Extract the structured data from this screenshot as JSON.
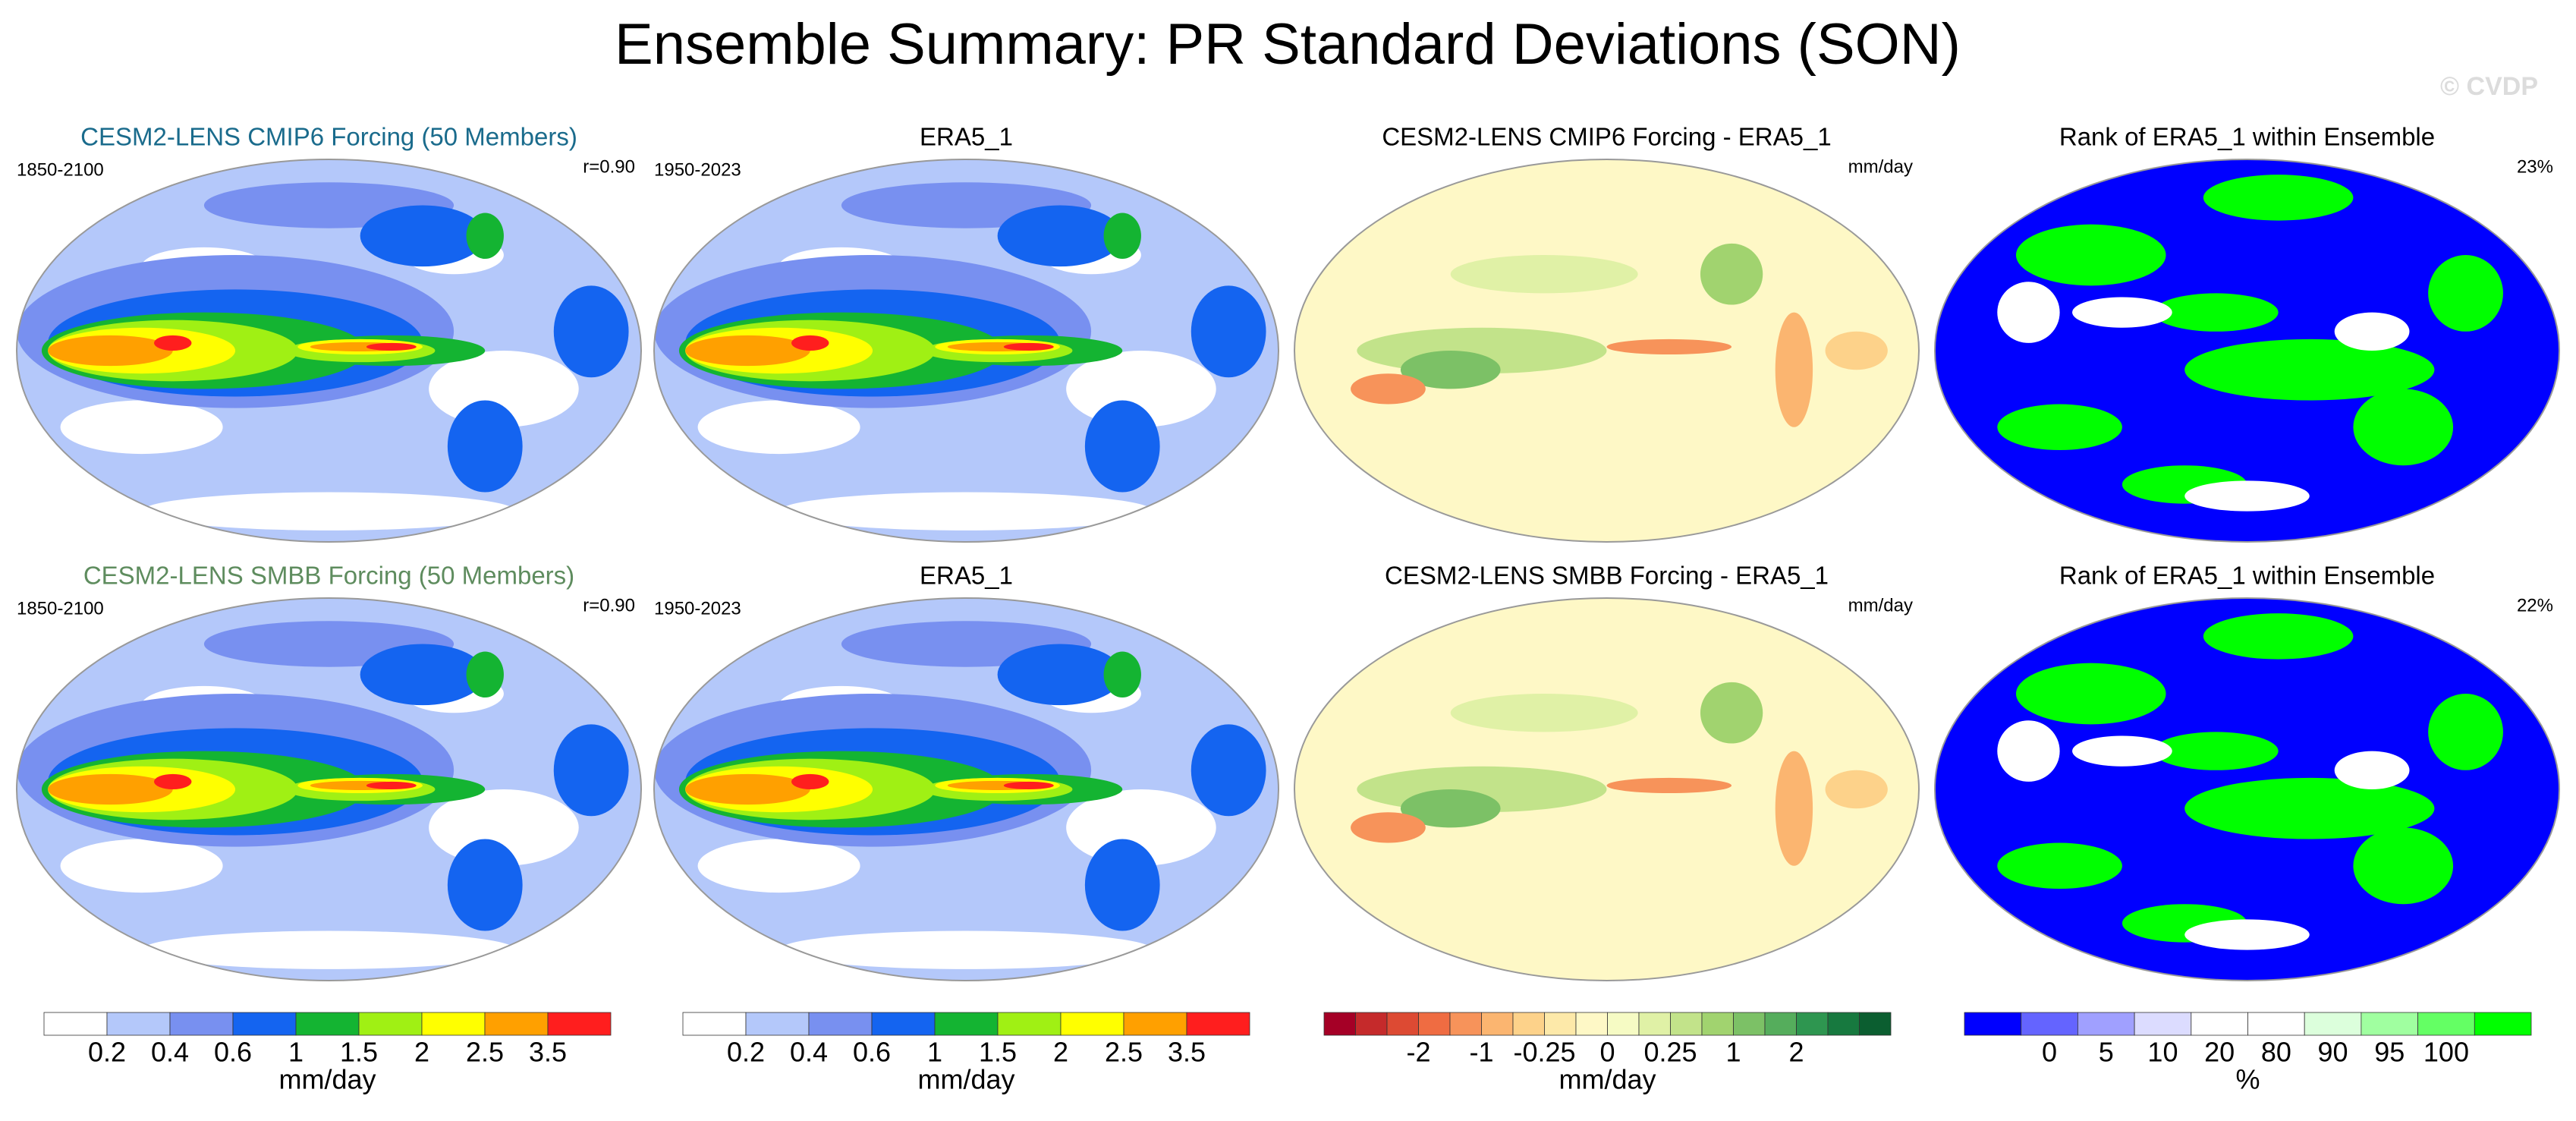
{
  "title": "Ensemble Summary: PR Standard Deviations (SON)",
  "watermark": "© CVDP",
  "panels": [
    {
      "title": "CESM2-LENS CMIP6 Forcing (50 Members)",
      "title_color": "#1a6b8c",
      "left": "1850-2100",
      "right": "r=0.90",
      "kind": "seq",
      "colorbar": 0
    },
    {
      "title": "ERA5_1",
      "left": "1950-2023",
      "kind": "seq",
      "colorbar": 1
    },
    {
      "title": "CESM2-LENS CMIP6 Forcing - ERA5_1",
      "right": "mm/day",
      "kind": "diff",
      "colorbar": 2
    },
    {
      "title": "Rank of ERA5_1 within Ensemble",
      "right": "23%",
      "kind": "rank",
      "colorbar": 3
    },
    {
      "title": "CESM2-LENS SMBB Forcing (50 Members)",
      "title_color": "#5e8c5e",
      "left": "1850-2100",
      "right": "r=0.90",
      "kind": "seq",
      "colorbar": 0
    },
    {
      "title": "ERA5_1",
      "left": "1950-2023",
      "kind": "seq",
      "colorbar": 1
    },
    {
      "title": "CESM2-LENS SMBB Forcing - ERA5_1",
      "right": "mm/day",
      "kind": "diff",
      "colorbar": 2
    },
    {
      "title": "Rank of ERA5_1 within Ensemble",
      "right": "22%",
      "kind": "rank",
      "colorbar": 3
    }
  ],
  "colorbars": [
    {
      "colors": [
        "#ffffff",
        "#b4c8fa",
        "#7890f0",
        "#1464f0",
        "#14b432",
        "#a0f014",
        "#ffff00",
        "#ffa000",
        "#ff1e1e"
      ],
      "ticks": [
        0.2,
        0.4,
        0.6,
        1,
        1.5,
        2,
        2.5,
        3.5
      ],
      "unit": "mm/day"
    },
    {
      "colors": [
        "#ffffff",
        "#b4c8fa",
        "#7890f0",
        "#1464f0",
        "#14b432",
        "#a0f014",
        "#ffff00",
        "#ffa000",
        "#ff1e1e"
      ],
      "ticks": [
        0.2,
        0.4,
        0.6,
        1,
        1.5,
        2,
        2.5,
        3.5
      ],
      "unit": "mm/day"
    },
    {
      "colors": [
        "#a50026",
        "#c52a2b",
        "#dd4a33",
        "#ef6c42",
        "#f7935a",
        "#fbb570",
        "#fdd28a",
        "#fde9a9",
        "#fef8c6",
        "#f6fbc4",
        "#e0f1a6",
        "#c2e38a",
        "#a1d36f",
        "#7cc166",
        "#55ad5c",
        "#2e9650",
        "#17793f",
        "#0b5e30"
      ],
      "ticks": [
        -2,
        -1,
        -0.25,
        0,
        0.25,
        1,
        2
      ],
      "unit": "mm/day"
    },
    {
      "colors": [
        "#0000ff",
        "#6464ff",
        "#a0a0ff",
        "#dcdcff",
        "#ffffff",
        "#ffffff",
        "#dcffdc",
        "#a0ffa0",
        "#64ff64",
        "#00ff00"
      ],
      "ticks": [
        0,
        5,
        10,
        20,
        80,
        90,
        95,
        100
      ],
      "unit": "%"
    }
  ]
}
